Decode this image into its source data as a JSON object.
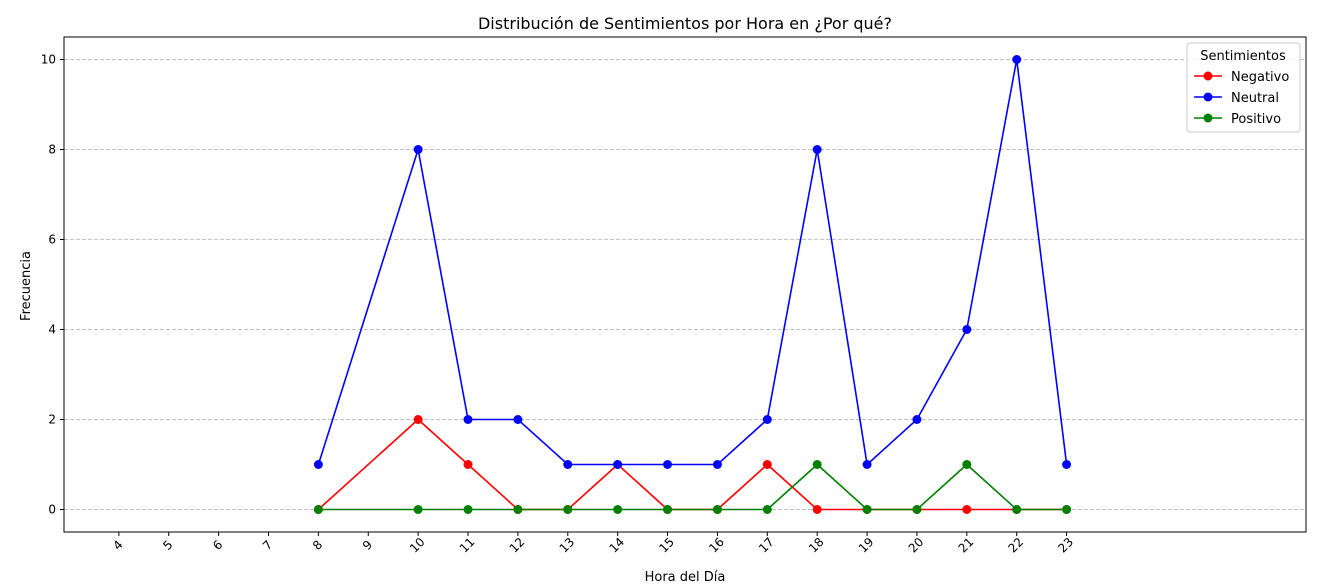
{
  "chart_data": {
    "type": "line",
    "title": "Distribución de Sentimientos por Hora en ¿Por qué?",
    "xlabel": "Hora del Día",
    "ylabel": "Frecuencia",
    "x_ticks": [
      "4",
      "5",
      "6",
      "7",
      "8",
      "9",
      "10",
      "11",
      "12",
      "13",
      "14",
      "15",
      "16",
      "17",
      "18",
      "19",
      "20",
      "21",
      "22",
      "23"
    ],
    "y_ticks": [
      "0",
      "2",
      "4",
      "6",
      "8",
      "10"
    ],
    "xlim": [
      2.9,
      27.8
    ],
    "ylim": [
      -0.5,
      10.5
    ],
    "grid": "horizontal dashed",
    "legend": {
      "title": "Sentimientos",
      "placement": "top-right"
    },
    "x": [
      8,
      10,
      11,
      12,
      13,
      14,
      15,
      16,
      17,
      18,
      19,
      20,
      21,
      22,
      23
    ],
    "series": [
      {
        "name": "Negativo",
        "color": "#ff0000",
        "values": [
          0,
          2,
          1,
          0,
          0,
          1,
          0,
          0,
          1,
          0,
          0,
          0,
          0,
          0,
          0
        ]
      },
      {
        "name": "Neutral",
        "color": "#0000ff",
        "values": [
          1,
          8,
          2,
          2,
          1,
          1,
          1,
          1,
          2,
          8,
          1,
          2,
          4,
          10,
          1
        ]
      },
      {
        "name": "Positivo",
        "color": "#008000",
        "values": [
          0,
          0,
          0,
          0,
          0,
          0,
          0,
          0,
          0,
          1,
          0,
          0,
          1,
          0,
          0
        ]
      }
    ]
  }
}
